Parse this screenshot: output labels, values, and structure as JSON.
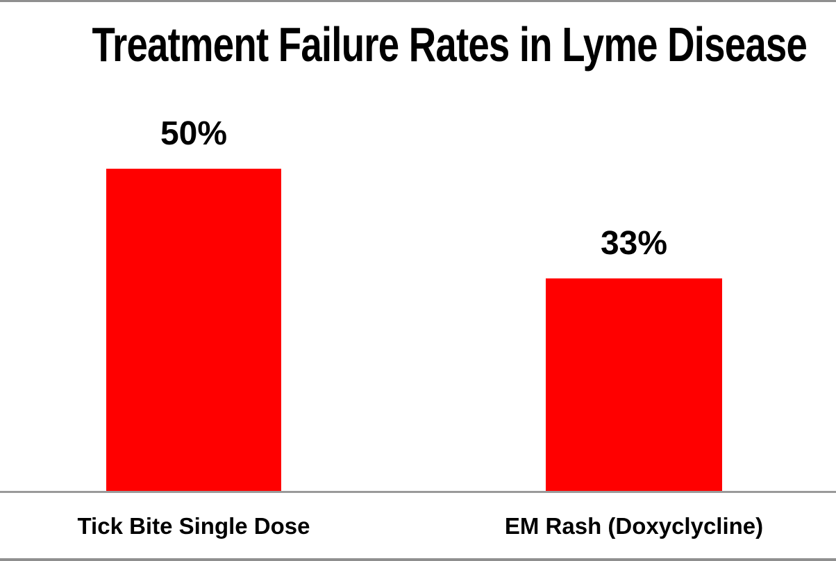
{
  "chart_data": {
    "type": "bar",
    "title": "Treatment Failure Rates in Lyme Disease",
    "categories": [
      "Tick Bite Single Dose",
      "EM Rash (Doxyclycline)"
    ],
    "values": [
      50,
      33
    ],
    "value_labels": [
      "50%",
      "33%"
    ],
    "unit": "percent",
    "series_count": 1,
    "grid": false,
    "legend": false,
    "y_axis_visible": false,
    "colors": {
      "bar": "#ff0000",
      "text": "#000000",
      "axis_line": "#9a9a9a",
      "background": "#ffffff",
      "frame_border": "#8f8f8f"
    }
  }
}
